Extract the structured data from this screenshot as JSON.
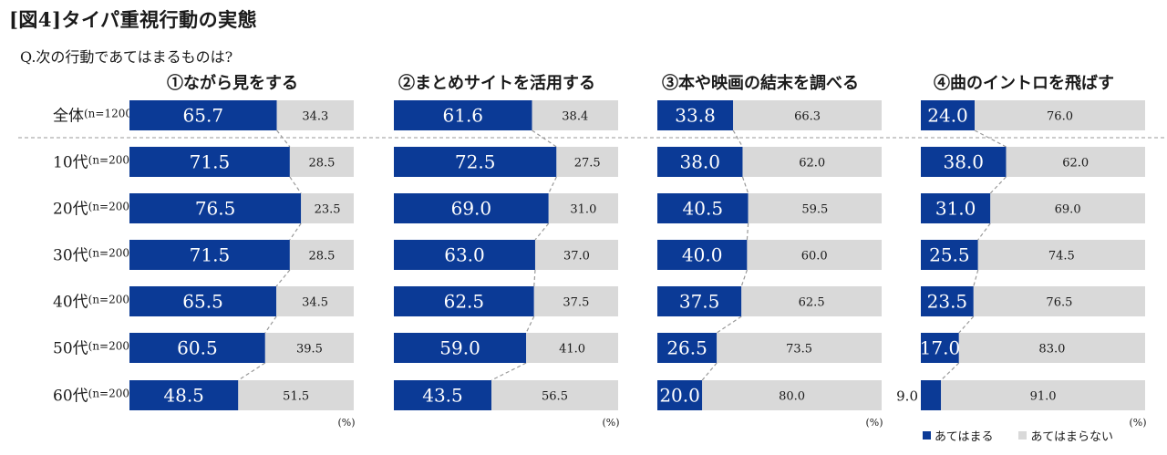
{
  "title": "[図4]タイパ重視行動の実態",
  "question": "Q.次の行動であてはまるものは?",
  "colors": {
    "yes": "#0b3a96",
    "no": "#d9d9d9",
    "connector": "#999999"
  },
  "legend": {
    "yes_label": "あてはまる",
    "no_label": "あてはまらない"
  },
  "unit": "(%)",
  "rows": [
    {
      "label": "全体",
      "n": "(n=1200)"
    },
    {
      "label": "10代",
      "n": "(n=200)"
    },
    {
      "label": "20代",
      "n": "(n=200)"
    },
    {
      "label": "30代",
      "n": "(n=200)"
    },
    {
      "label": "40代",
      "n": "(n=200)"
    },
    {
      "label": "50代",
      "n": "(n=200)"
    },
    {
      "label": "60代",
      "n": "(n=200)"
    }
  ],
  "chart_data": [
    {
      "type": "bar",
      "stacked": true,
      "title": "①ながら見をする",
      "categories": [
        "全体",
        "10代",
        "20代",
        "30代",
        "40代",
        "50代",
        "60代"
      ],
      "series": [
        {
          "name": "あてはまる",
          "values": [
            "65.7",
            "71.5",
            "76.5",
            "71.5",
            "65.5",
            "60.5",
            "48.5"
          ]
        },
        {
          "name": "あてはまらない",
          "values": [
            "34.3",
            "28.5",
            "23.5",
            "28.5",
            "34.5",
            "39.5",
            "51.5"
          ]
        }
      ]
    },
    {
      "type": "bar",
      "stacked": true,
      "title": "②まとめサイトを活用する",
      "categories": [
        "全体",
        "10代",
        "20代",
        "30代",
        "40代",
        "50代",
        "60代"
      ],
      "series": [
        {
          "name": "あてはまる",
          "values": [
            "61.6",
            "72.5",
            "69.0",
            "63.0",
            "62.5",
            "59.0",
            "43.5"
          ]
        },
        {
          "name": "あてはまらない",
          "values": [
            "38.4",
            "27.5",
            "31.0",
            "37.0",
            "37.5",
            "41.0",
            "56.5"
          ]
        }
      ]
    },
    {
      "type": "bar",
      "stacked": true,
      "title": "③本や映画の結末を調べる",
      "categories": [
        "全体",
        "10代",
        "20代",
        "30代",
        "40代",
        "50代",
        "60代"
      ],
      "series": [
        {
          "name": "あてはまる",
          "values": [
            "33.8",
            "38.0",
            "40.5",
            "40.0",
            "37.5",
            "26.5",
            "20.0"
          ]
        },
        {
          "name": "あてはまらない",
          "values": [
            "66.3",
            "62.0",
            "59.5",
            "60.0",
            "62.5",
            "73.5",
            "80.0"
          ]
        }
      ]
    },
    {
      "type": "bar",
      "stacked": true,
      "title": "④曲のイントロを飛ばす",
      "categories": [
        "全体",
        "10代",
        "20代",
        "30代",
        "40代",
        "50代",
        "60代"
      ],
      "series": [
        {
          "name": "あてはまる",
          "values": [
            "24.0",
            "38.0",
            "31.0",
            "25.5",
            "23.5",
            "17.0",
            "9.0"
          ]
        },
        {
          "name": "あてはまらない",
          "values": [
            "76.0",
            "62.0",
            "69.0",
            "74.5",
            "76.5",
            "83.0",
            "91.0"
          ]
        }
      ]
    }
  ]
}
